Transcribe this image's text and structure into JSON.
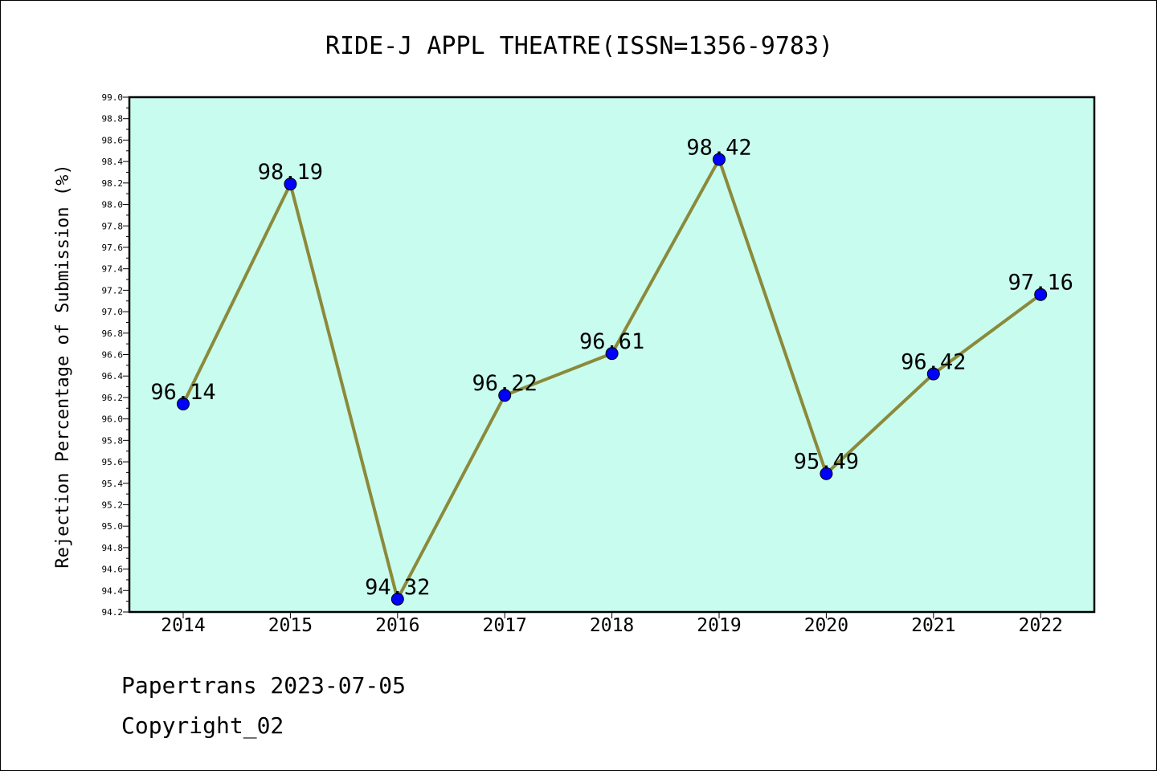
{
  "chart_data": {
    "type": "line",
    "title": "RIDE-J APPL THEATRE(ISSN=1356-9783)",
    "xlabel": "",
    "ylabel": "Rejection Percentage of Submission (%)",
    "categories": [
      "2014",
      "2015",
      "2016",
      "2017",
      "2018",
      "2019",
      "2020",
      "2021",
      "2022"
    ],
    "values": [
      96.14,
      98.19,
      94.32,
      96.22,
      96.61,
      98.42,
      95.49,
      96.42,
      97.16
    ],
    "data_labels": [
      "96.14",
      "98.19",
      "94.32",
      "96.22",
      "96.61",
      "98.42",
      "95.49",
      "96.42",
      "97.16"
    ],
    "ylim": [
      94.2,
      99.0
    ],
    "yticks": [
      "94.2",
      "94.4",
      "94.6",
      "94.8",
      "95.0",
      "95.2",
      "95.4",
      "95.6",
      "95.8",
      "96.0",
      "96.2",
      "96.4",
      "96.6",
      "96.8",
      "97.0",
      "97.2",
      "97.4",
      "97.6",
      "97.8",
      "98.0",
      "98.2",
      "98.4",
      "98.6",
      "98.8",
      "99.0"
    ],
    "grid": false,
    "colors": {
      "plot_background": "#c8fcee",
      "line": "#8b8a3a",
      "marker": "#0000ff"
    }
  },
  "footer": {
    "line1": "Papertrans 2023-07-05",
    "line2": "Copyright_02"
  }
}
